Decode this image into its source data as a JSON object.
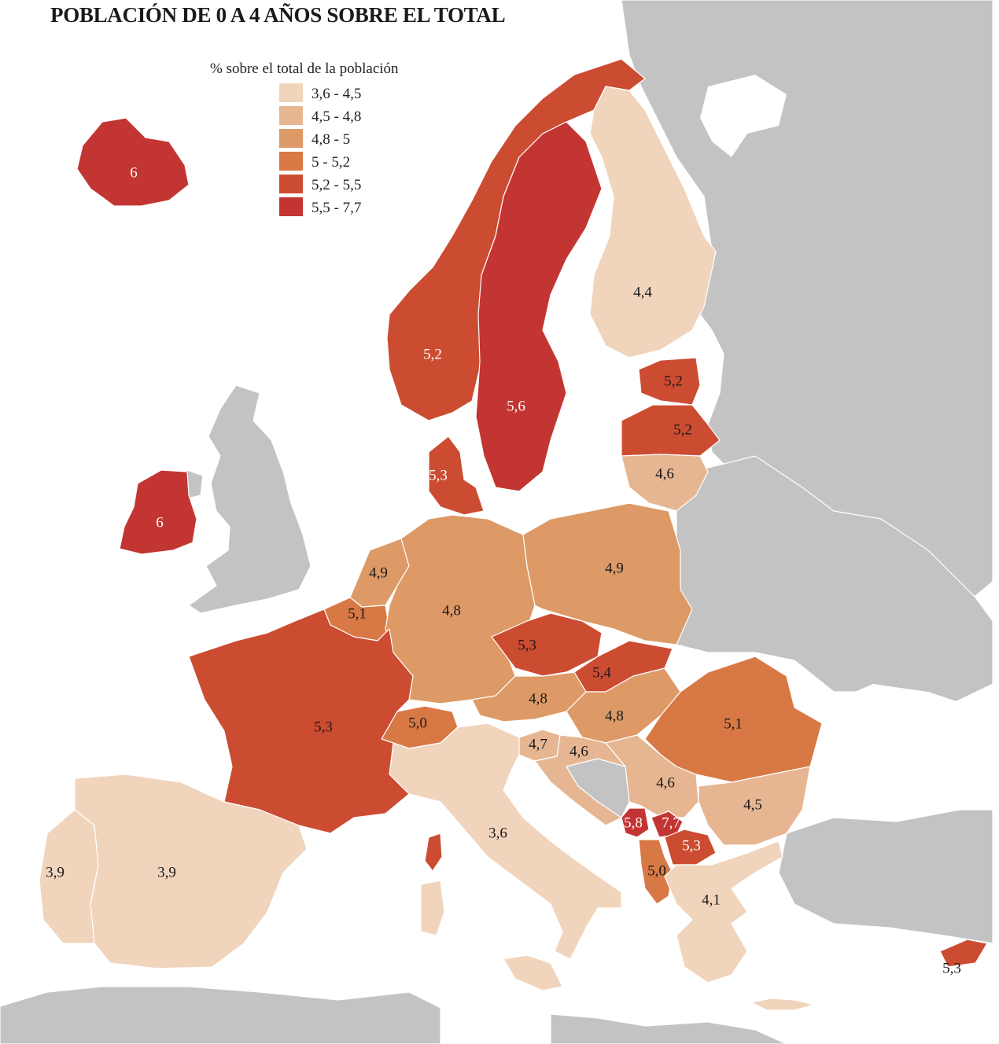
{
  "title": "POBLACIÓN DE 0 A 4 AÑOS SOBRE EL TOTAL",
  "legend": {
    "title": "% sobre el total de la población",
    "classes": [
      {
        "label": "3,6 - 4,5",
        "color": "#f1d4bc"
      },
      {
        "label": "4,5 - 4,8",
        "color": "#e6b692"
      },
      {
        "label": "4,8 - 5",
        "color": "#dd9a66"
      },
      {
        "label": "5 - 5,2",
        "color": "#d87945"
      },
      {
        "label": "5,2 - 5,5",
        "color": "#cc4c32"
      },
      {
        "label": "5,5 - 7,7",
        "color": "#c33532"
      }
    ]
  },
  "colors": {
    "non_eu_land": "#c3c3c3",
    "sea": "#ffffff",
    "border": "#ffffff"
  },
  "regions": [
    {
      "id": "iceland",
      "value": "6"
    },
    {
      "id": "ireland",
      "value": "6"
    },
    {
      "id": "norway",
      "value": "5,2"
    },
    {
      "id": "sweden",
      "value": "5,6"
    },
    {
      "id": "finland",
      "value": "4,4"
    },
    {
      "id": "estonia",
      "value": "5,2"
    },
    {
      "id": "latvia",
      "value": "5,2"
    },
    {
      "id": "lithuania",
      "value": "4,6"
    },
    {
      "id": "denmark",
      "value": "5,3"
    },
    {
      "id": "netherlands",
      "value": "4,9"
    },
    {
      "id": "belgium",
      "value": "5,1"
    },
    {
      "id": "germany",
      "value": "4,8"
    },
    {
      "id": "poland",
      "value": "4,9"
    },
    {
      "id": "czechia",
      "value": "5,3"
    },
    {
      "id": "slovakia",
      "value": "5,4"
    },
    {
      "id": "austria",
      "value": "4,8"
    },
    {
      "id": "hungary",
      "value": "4,8"
    },
    {
      "id": "switzerland",
      "value": "5,0"
    },
    {
      "id": "slovenia",
      "value": "4,7"
    },
    {
      "id": "croatia",
      "value": "4,6"
    },
    {
      "id": "serbia",
      "value": "4,6"
    },
    {
      "id": "romania",
      "value": "5,1"
    },
    {
      "id": "bulgaria",
      "value": "4,5"
    },
    {
      "id": "montenegro",
      "value": "5,8"
    },
    {
      "id": "kosovo",
      "value": "7,7"
    },
    {
      "id": "north_macedonia",
      "value": "5,3"
    },
    {
      "id": "albania",
      "value": "5,0"
    },
    {
      "id": "greece",
      "value": "4,1"
    },
    {
      "id": "italy",
      "value": "3,6"
    },
    {
      "id": "france",
      "value": "5,3"
    },
    {
      "id": "spain",
      "value": "3,9"
    },
    {
      "id": "portugal",
      "value": "3,9"
    },
    {
      "id": "cyprus",
      "value": "5,3"
    }
  ]
}
